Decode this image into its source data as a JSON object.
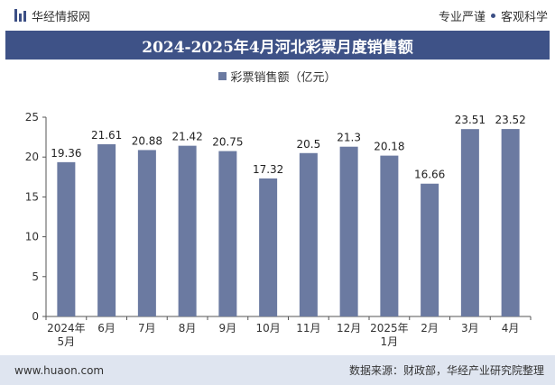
{
  "header": {
    "site_name": "华经情报网",
    "logo_icon": "bar-logo-icon",
    "tag1": "专业严谨",
    "tag2": "客观科学"
  },
  "chart_data": {
    "type": "bar",
    "title": "2024-2025年4月河北彩票月度销售额",
    "categories": [
      "2024年\n5月",
      "6月",
      "7月",
      "8月",
      "9月",
      "10月",
      "11月",
      "12月",
      "2025年\n1月",
      "2月",
      "3月",
      "4月"
    ],
    "series": [
      {
        "name": "彩票销售额（亿元）",
        "values": [
          19.36,
          21.61,
          20.88,
          21.42,
          20.75,
          17.32,
          20.5,
          21.3,
          20.18,
          16.66,
          23.51,
          23.52
        ],
        "labels": [
          "19.36",
          "21.61",
          "20.88",
          "21.42",
          "20.75",
          "17.32",
          "20.5",
          "21.3",
          "20.18",
          "16.66",
          "23.51",
          "23.52"
        ]
      }
    ],
    "ylim": [
      0,
      25
    ],
    "yticks": [
      0,
      5,
      10,
      15,
      20,
      25
    ],
    "xlabel": "",
    "ylabel": "",
    "legend_position": "top-center",
    "grid": false,
    "bar_color": "#6b7aa1"
  },
  "footer": {
    "website": "www.huaon.com",
    "source": "数据来源：财政部，华经产业研究院整理"
  }
}
